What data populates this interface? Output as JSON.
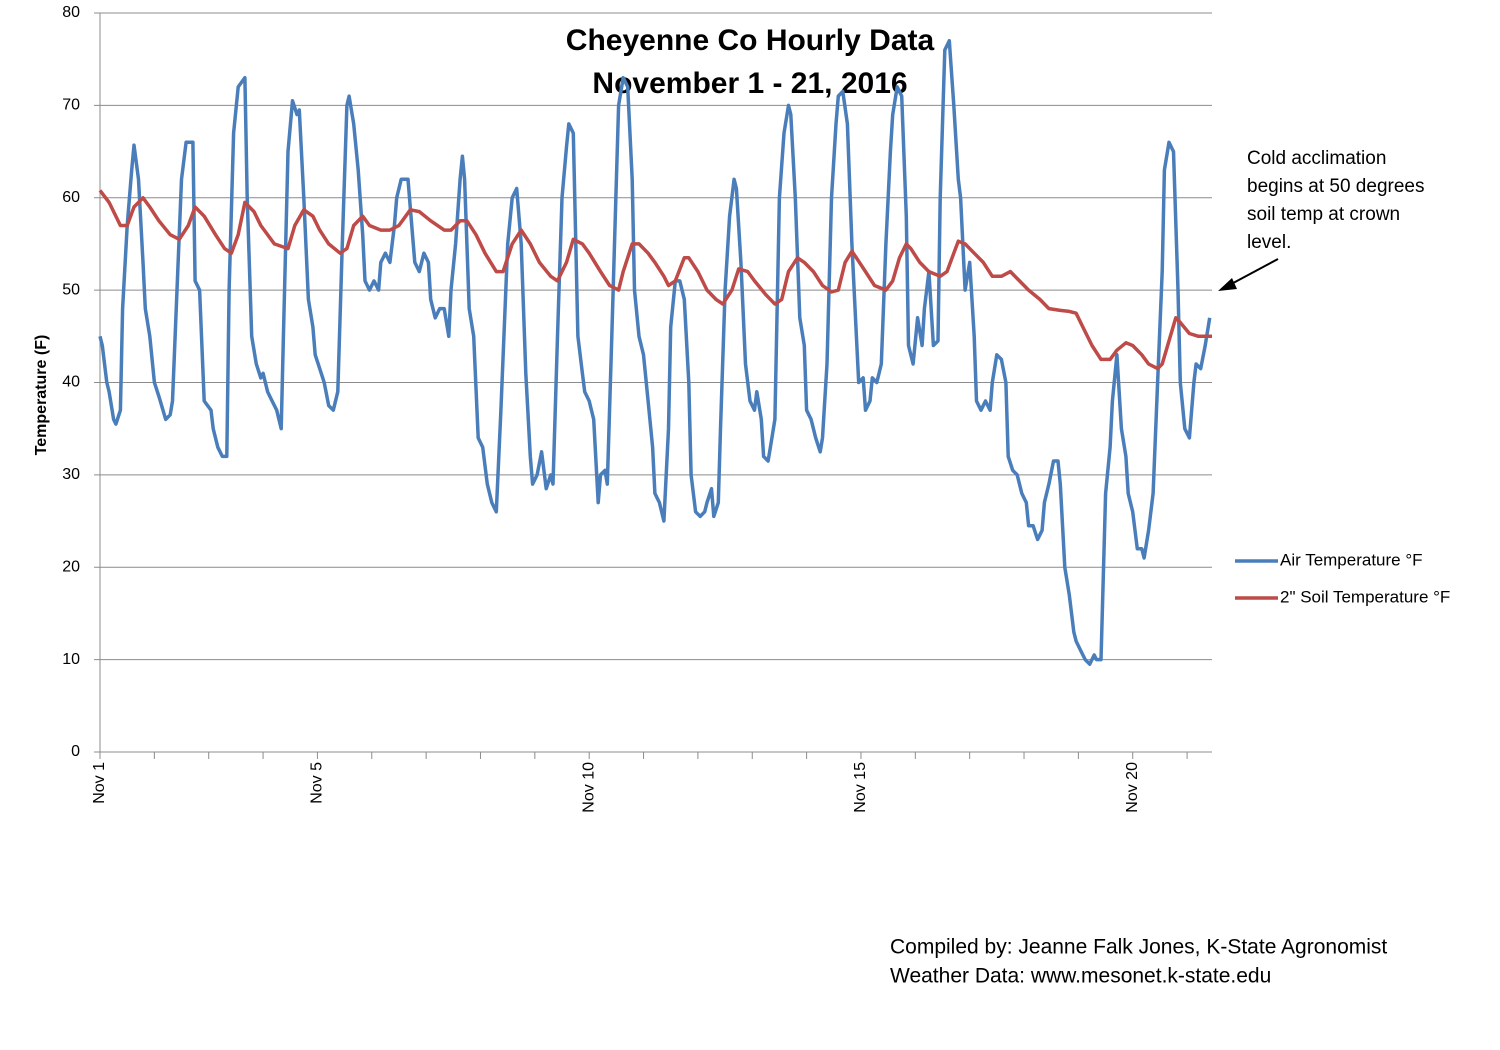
{
  "chart_data": {
    "type": "line",
    "title": [
      "Cheyenne Co Hourly Data",
      "November 1 - 21, 2016"
    ],
    "ylabel": "Temperature (F)",
    "xlim": [
      0,
      491
    ],
    "xticks": [
      {
        "value": 0,
        "label": "Nov 1"
      },
      {
        "value": 96,
        "label": "Nov 5"
      },
      {
        "value": 216,
        "label": "Nov 10"
      },
      {
        "value": 336,
        "label": "Nov 15"
      },
      {
        "value": 456,
        "label": "Nov 20"
      }
    ],
    "xminor_ticks": [
      24,
      48,
      72,
      120,
      144,
      168,
      192,
      240,
      264,
      288,
      312,
      360,
      384,
      408,
      432,
      480
    ],
    "ylim": [
      0,
      80
    ],
    "yticks": [
      0,
      10,
      20,
      30,
      40,
      50,
      60,
      70,
      80
    ],
    "grid": true,
    "legend": "right",
    "annotation": [
      "Cold acclimation",
      "begins at 50 degrees",
      "soil temp at crown",
      "level."
    ],
    "footer": [
      "Compiled by: Jeanne Falk Jones, K-State Agronomist",
      "Weather Data: www.mesonet.k-state.edu"
    ],
    "series": [
      {
        "name": "Air Temperature °F",
        "color": "#4a7ebb",
        "x": [
          0,
          1,
          3,
          4,
          6,
          7,
          9,
          10,
          12,
          14,
          15,
          17,
          19,
          20,
          22,
          24,
          26,
          29,
          31,
          32,
          34,
          36,
          38,
          41,
          42,
          44,
          46,
          49,
          50,
          52,
          54,
          56,
          57,
          59,
          61,
          64,
          65,
          67,
          69,
          71,
          72,
          74,
          76,
          78,
          80,
          81,
          83,
          85,
          87,
          88,
          90,
          92,
          94,
          95,
          97,
          99,
          101,
          103,
          105,
          107,
          109,
          110,
          112,
          114,
          116,
          117,
          119,
          121,
          123,
          124,
          126,
          128,
          130,
          131,
          133,
          136,
          138,
          139,
          141,
          143,
          145,
          146,
          148,
          150,
          152,
          154,
          155,
          157,
          159,
          160,
          161,
          163,
          165,
          167,
          169,
          171,
          173,
          175,
          177,
          180,
          182,
          184,
          186,
          188,
          190,
          191,
          193,
          195,
          197,
          199,
          200,
          202,
          204,
          206,
          207,
          209,
          211,
          213,
          214,
          216,
          218,
          220,
          221,
          223,
          224,
          226,
          228,
          229,
          231,
          233,
          235,
          236,
          238,
          240,
          242,
          244,
          245,
          247,
          249,
          251,
          252,
          254,
          256,
          258,
          260,
          261,
          263,
          265,
          267,
          268,
          270,
          271,
          273,
          274,
          276,
          278,
          280,
          281,
          283,
          285,
          287,
          289,
          290,
          292,
          293,
          295,
          296,
          298,
          300,
          302,
          304,
          305,
          307,
          309,
          311,
          312,
          314,
          316,
          318,
          319,
          321,
          323,
          325,
          326,
          328,
          330,
          332,
          334,
          335,
          337,
          338,
          340,
          341,
          343,
          345,
          347,
          349,
          350,
          352,
          354,
          356,
          357,
          359,
          361,
          363,
          364,
          366,
          368,
          370,
          371,
          373,
          375,
          377,
          379,
          380,
          382,
          384,
          386,
          387,
          389,
          391,
          393,
          394,
          396,
          398,
          400,
          401,
          403,
          405,
          407,
          409,
          410,
          412,
          414,
          416,
          417,
          419,
          421,
          423,
          424,
          426,
          428,
          430,
          431,
          433,
          435,
          437,
          439,
          440,
          442,
          444,
          446,
          447,
          449,
          451,
          453,
          454,
          456,
          458,
          460,
          461,
          463,
          465,
          467,
          469,
          470,
          472,
          474,
          476,
          477,
          479,
          481,
          483,
          484,
          486,
          488,
          490
        ],
        "values": [
          45,
          44,
          40,
          39,
          36,
          35.5,
          37,
          48,
          57,
          63,
          65.7,
          62,
          53,
          48,
          45,
          40,
          38.5,
          36,
          36.5,
          38,
          50,
          62,
          66,
          66,
          51,
          50,
          38,
          37,
          35,
          33,
          32,
          32,
          50,
          67,
          72,
          73,
          60,
          45,
          42,
          40.5,
          41,
          39,
          38,
          37,
          35,
          45,
          65,
          70.5,
          69,
          69.5,
          60,
          49,
          46,
          43,
          41.5,
          40,
          37.5,
          37,
          39,
          55,
          70,
          71,
          68,
          63,
          56,
          51,
          50,
          51,
          50,
          53,
          54,
          53,
          57,
          60,
          62,
          62,
          56,
          53,
          52,
          54,
          53,
          49,
          47,
          48,
          48,
          45,
          50,
          55,
          62,
          64.5,
          62,
          48,
          45,
          34,
          33,
          29,
          27,
          26,
          37,
          55,
          60,
          61,
          55,
          41,
          32,
          29,
          30,
          32.5,
          28.5,
          30,
          29,
          45,
          60,
          65.5,
          68,
          67,
          45,
          41,
          39,
          38,
          36,
          27,
          30,
          30.5,
          29,
          45,
          62,
          70,
          73,
          72,
          62,
          50,
          45,
          43,
          38,
          33,
          28,
          27,
          25,
          35,
          46,
          51,
          51,
          49,
          40,
          30,
          26,
          25.5,
          26,
          27,
          28.5,
          25.5,
          27,
          35,
          50,
          58,
          62,
          61,
          53,
          42,
          38,
          37,
          39,
          36,
          32,
          31.5,
          33,
          36,
          60,
          67,
          70,
          69,
          60,
          47,
          44,
          37,
          36,
          34,
          32.5,
          34,
          42,
          60,
          68,
          71,
          71.5,
          68,
          55,
          45,
          40,
          40.5,
          37,
          38,
          40.5,
          40,
          42,
          55,
          65,
          69,
          72,
          71,
          58,
          44,
          42,
          47,
          44,
          48,
          52,
          44,
          44.5,
          60,
          76,
          77,
          70,
          62,
          60,
          50,
          53,
          45,
          38,
          37,
          38,
          37,
          40,
          43,
          42.5,
          40,
          32,
          30.5,
          30,
          28,
          27,
          24.5,
          24.5,
          23,
          24,
          27,
          29,
          31.5,
          31.5,
          29,
          20,
          17,
          13,
          12,
          11,
          10,
          9.5,
          10.5,
          10,
          10,
          28,
          33,
          38,
          43,
          35,
          32,
          28,
          26,
          22,
          22,
          21,
          24,
          28,
          40,
          52,
          63,
          66,
          65,
          50,
          40,
          35,
          34,
          40,
          42,
          41.5,
          44,
          47
        ]
      },
      {
        "name": "2\" Soil Temperature °F",
        "color": "#be4b48",
        "x": [
          0,
          4,
          9,
          12,
          15,
          19,
          22,
          26,
          31,
          35,
          39,
          42,
          46,
          51,
          55,
          58,
          61,
          64,
          68,
          71,
          77,
          83,
          86,
          90,
          94,
          97,
          101,
          106,
          109,
          112,
          116,
          119,
          124,
          128,
          132,
          137,
          141,
          146,
          152,
          155,
          159,
          162,
          166,
          170,
          175,
          178,
          182,
          186,
          190,
          194,
          199,
          202,
          206,
          209,
          213,
          216,
          221,
          225,
          229,
          231,
          235,
          238,
          242,
          245,
          249,
          251,
          254,
          258,
          260,
          264,
          268,
          272,
          275,
          279,
          282,
          286,
          289,
          294,
          298,
          301,
          304,
          308,
          311,
          315,
          319,
          323,
          326,
          329,
          332,
          334,
          338,
          342,
          347,
          350,
          353,
          356,
          358,
          362,
          366,
          371,
          374,
          377,
          379,
          382,
          386,
          390,
          394,
          398,
          402,
          406,
          410,
          415,
          419,
          424,
          428,
          431,
          434,
          438,
          442,
          446,
          449,
          453,
          456,
          460,
          463,
          467,
          469,
          472,
          475,
          477,
          481,
          485,
          491
        ],
        "values": [
          60.8,
          59.5,
          57,
          57,
          59,
          60,
          59,
          57.5,
          56,
          55.5,
          57,
          59,
          58,
          56,
          54.5,
          54,
          56,
          59.5,
          58.5,
          57,
          55,
          54.5,
          57,
          58.7,
          58,
          56.5,
          55,
          54,
          54.5,
          57,
          58,
          57,
          56.5,
          56.5,
          57,
          58.7,
          58.5,
          57.5,
          56.5,
          56.5,
          57.5,
          57.5,
          56,
          54,
          52,
          52,
          55,
          56.5,
          55,
          53,
          51.5,
          51,
          53,
          55.5,
          55,
          54,
          52,
          50.5,
          50,
          52,
          55,
          55,
          54,
          53,
          51.5,
          50.5,
          51,
          53.5,
          53.5,
          52,
          50,
          49,
          48.5,
          50,
          52.3,
          52,
          51,
          49.5,
          48.5,
          49,
          52,
          53.5,
          53,
          52,
          50.5,
          49.8,
          50,
          53,
          54.2,
          53.5,
          52,
          50.5,
          50,
          51,
          53.5,
          55,
          54.5,
          53,
          52,
          51.5,
          52,
          54,
          55.3,
          55,
          54,
          53,
          51.5,
          51.5,
          52,
          51,
          50,
          49,
          48,
          47.8,
          47.7,
          47.5,
          46,
          44,
          42.5,
          42.5,
          43.5,
          44.3,
          44,
          43,
          42,
          41.5,
          42,
          44.5,
          47,
          46.5,
          45.3,
          45,
          45
        ]
      }
    ]
  }
}
